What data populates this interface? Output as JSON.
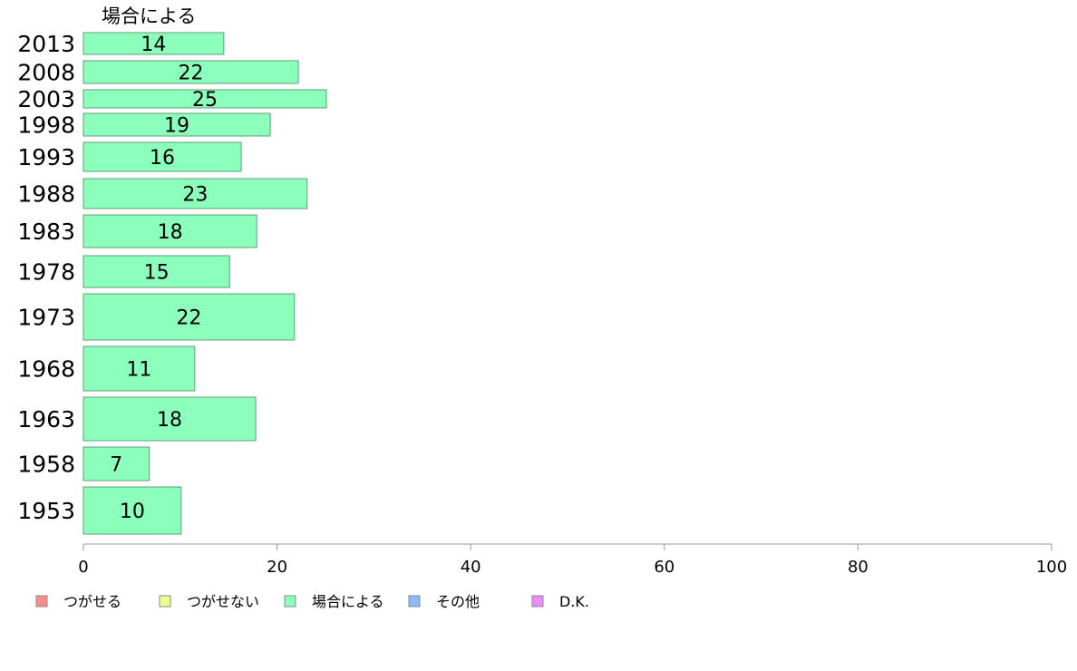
{
  "chart_data": {
    "type": "bar",
    "orientation": "horizontal",
    "variable_width": true,
    "title": "場合による",
    "categories": [
      "2013",
      "2008",
      "2003",
      "1998",
      "1993",
      "1988",
      "1983",
      "1978",
      "1973",
      "1968",
      "1963",
      "1958",
      "1953"
    ],
    "series": [
      {
        "name": "場合による",
        "values": [
          14.5,
          22.2,
          25.1,
          19.3,
          16.3,
          23.1,
          17.9,
          15.1,
          21.8,
          11.5,
          17.8,
          6.8,
          10.1
        ],
        "labels": [
          "14",
          "22",
          "25",
          "19",
          "16",
          "23",
          "18",
          "15",
          "22",
          "11",
          "18",
          "7",
          "10"
        ],
        "color": "#8cffbc"
      }
    ],
    "xlim": [
      0,
      100
    ],
    "xticks": [
      "0",
      "20",
      "40",
      "60",
      "80",
      "100"
    ],
    "xlabel": "",
    "ylabel": "",
    "grid": false,
    "legend_position": "bottom",
    "legend": [
      {
        "label": "つがせる",
        "color": "#ff8c8c"
      },
      {
        "label": "つがせない",
        "color": "#eaff8c"
      },
      {
        "label": "場合による",
        "color": "#8cffbc"
      },
      {
        "label": "その他",
        "color": "#8cbcff"
      },
      {
        "label": "D.K.",
        "color": "#ea8cff"
      }
    ]
  }
}
